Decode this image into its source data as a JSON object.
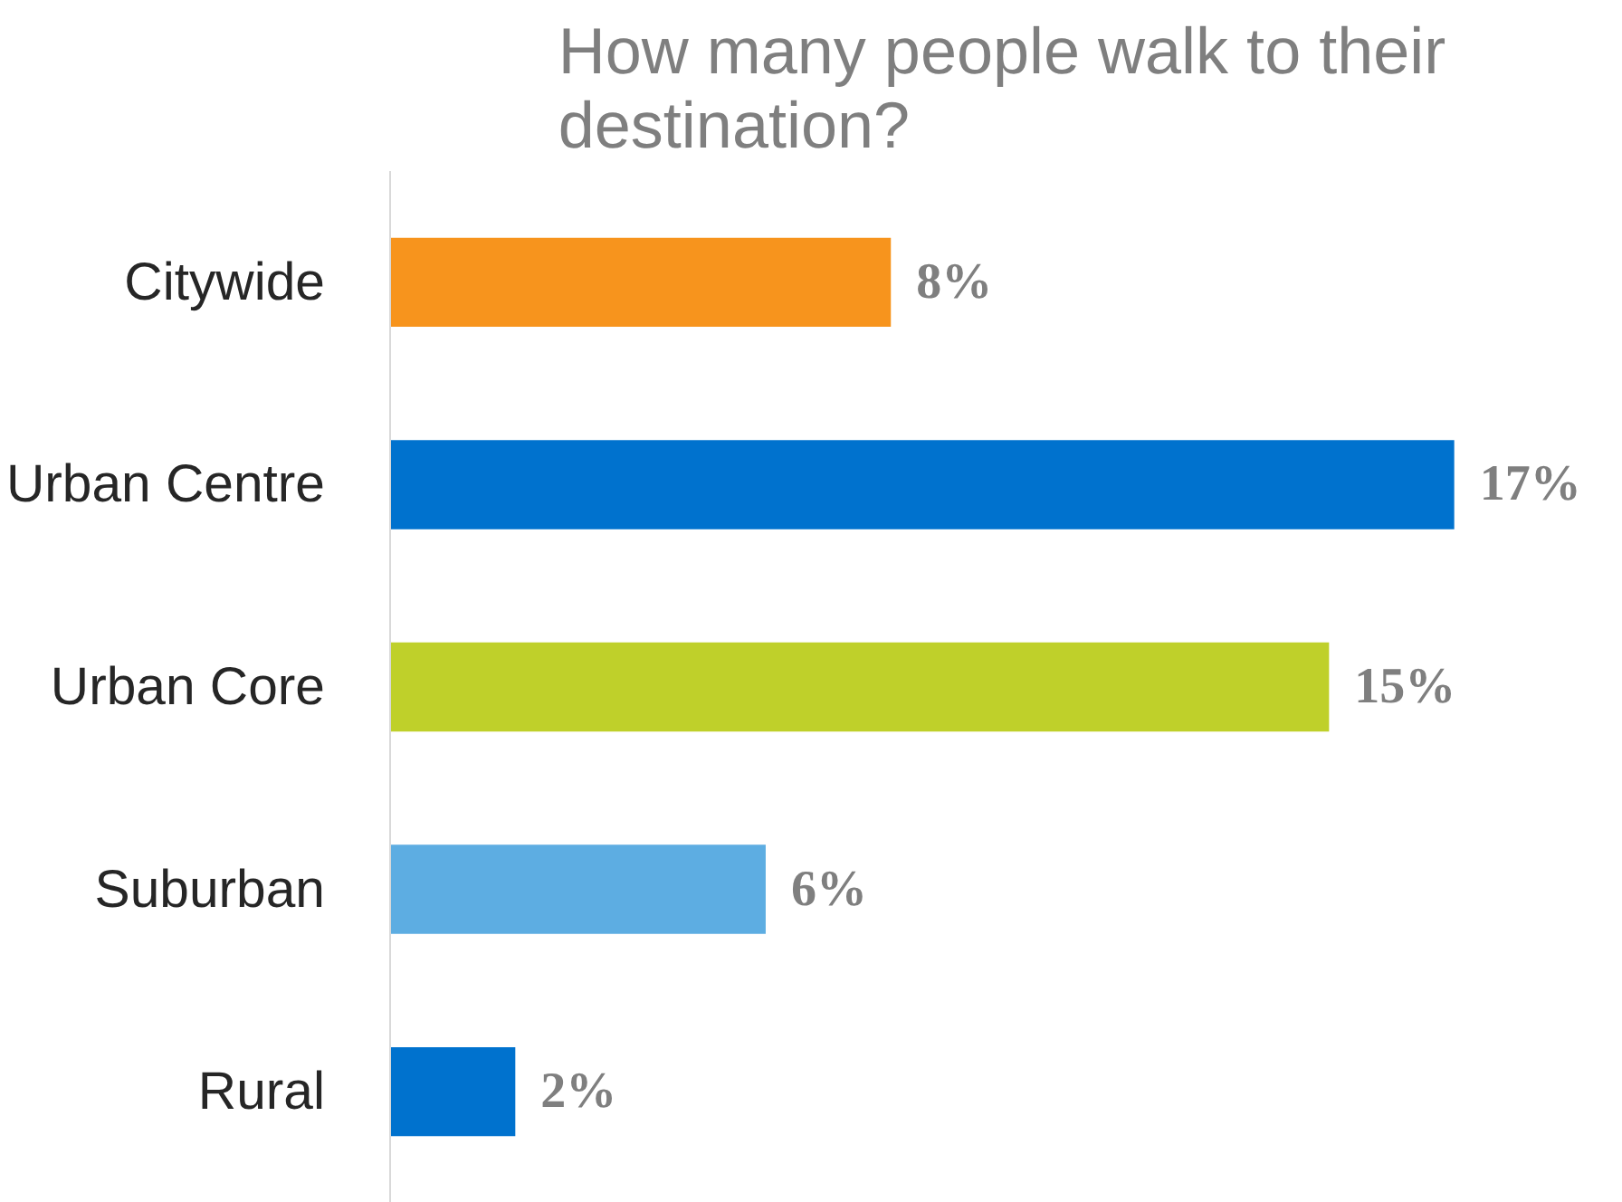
{
  "chart_data": {
    "type": "bar",
    "orientation": "horizontal",
    "title": "How many people walk to their destination?",
    "categories": [
      "Citywide",
      "Urban Centre",
      "Urban Core",
      "Suburban",
      "Rural"
    ],
    "values": [
      8,
      17,
      15,
      6,
      2
    ],
    "colors": [
      "#f7941d",
      "#0072ce",
      "#bfd02a",
      "#5dade2",
      "#0072ce"
    ],
    "value_labels": [
      "8%",
      "17%",
      "15%",
      "6%",
      "2%"
    ],
    "grid": false
  }
}
